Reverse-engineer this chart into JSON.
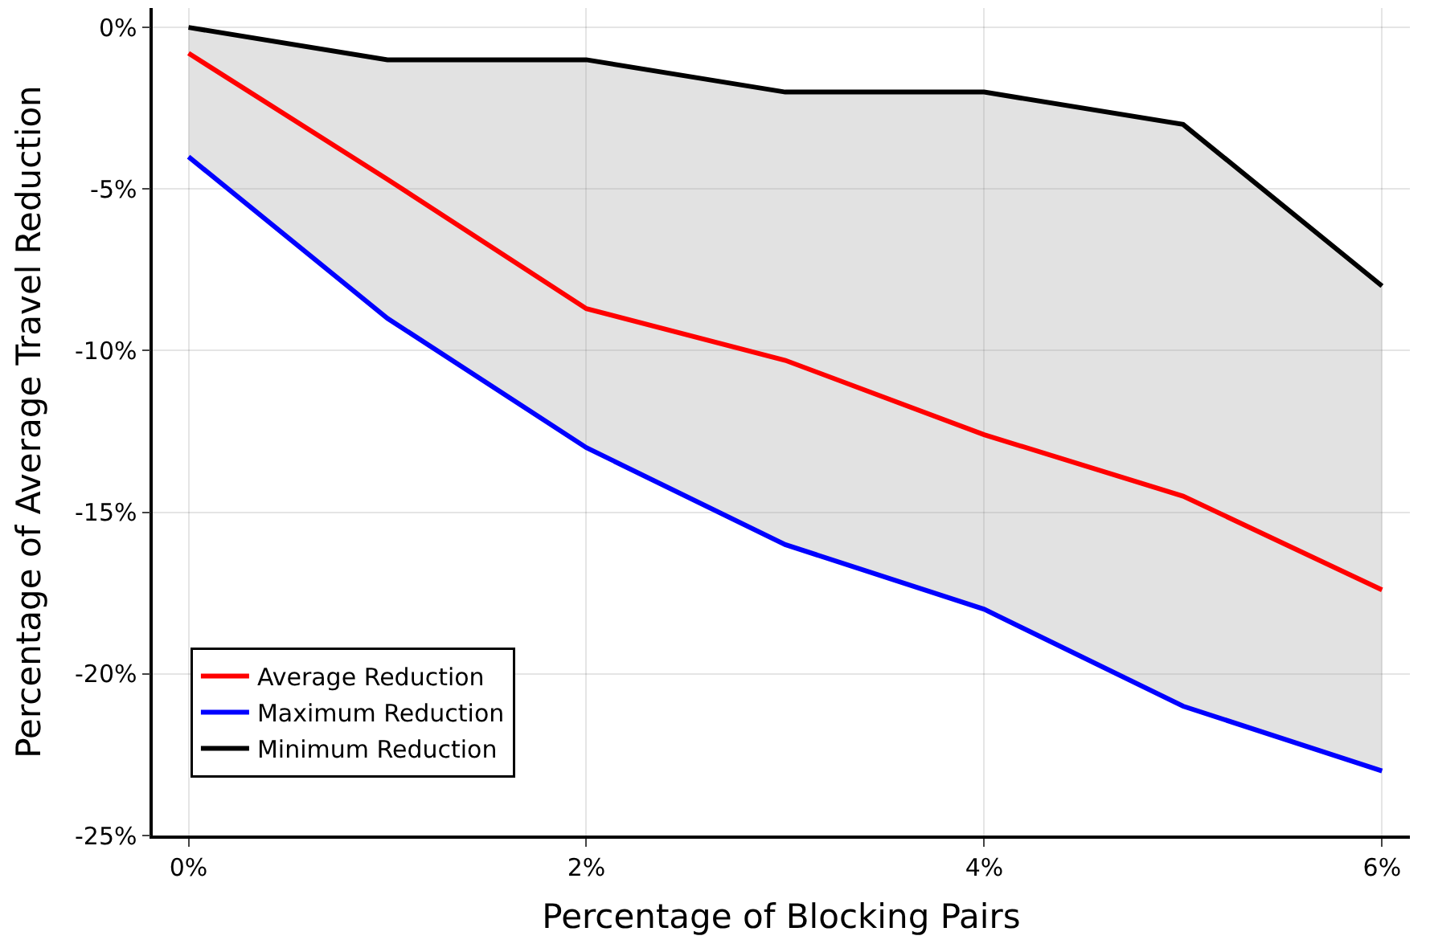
{
  "chart_data": {
    "type": "line",
    "xlabel": "Percentage of Blocking Pairs",
    "ylabel": "Percentage of Average Travel Reduction",
    "x": [
      0,
      1,
      2,
      3,
      4,
      5,
      6
    ],
    "series": [
      {
        "name": "Minimum Reduction",
        "color": "#000000",
        "values": [
          0,
          -1,
          -1,
          -2,
          -2,
          -3,
          -8
        ]
      },
      {
        "name": "Maximum Reduction",
        "color": "#0000ff",
        "values": [
          -4,
          -9,
          -13,
          -16,
          -18,
          -21,
          -23
        ]
      },
      {
        "name": "Average Reduction",
        "color": "#ff0000",
        "values": [
          -0.8,
          -4.7,
          -8.7,
          -10.3,
          -12.6,
          -14.5,
          -17.4
        ],
        "lower": [
          -4,
          -9,
          -13,
          -16,
          -18,
          -21,
          -23
        ],
        "upper": [
          0,
          -1,
          -1,
          -2,
          -2,
          -3,
          -8
        ]
      }
    ],
    "xlim": [
      -0.18,
      6.14
    ],
    "ylim": [
      -25,
      0.6
    ],
    "xticks": [
      {
        "value": 0,
        "label": "0%"
      },
      {
        "value": 2,
        "label": "2%"
      },
      {
        "value": 4,
        "label": "4%"
      },
      {
        "value": 6,
        "label": "6%"
      }
    ],
    "yticks": [
      {
        "value": 0,
        "label": "0%"
      },
      {
        "value": -5,
        "label": "-5%"
      },
      {
        "value": -10,
        "label": "-10%"
      },
      {
        "value": -15,
        "label": "-15%"
      },
      {
        "value": -20,
        "label": "-20%"
      },
      {
        "value": -25,
        "label": "-25%"
      }
    ],
    "grid": true,
    "legend": "bottom left",
    "line_style": "solid",
    "marker": "none"
  }
}
